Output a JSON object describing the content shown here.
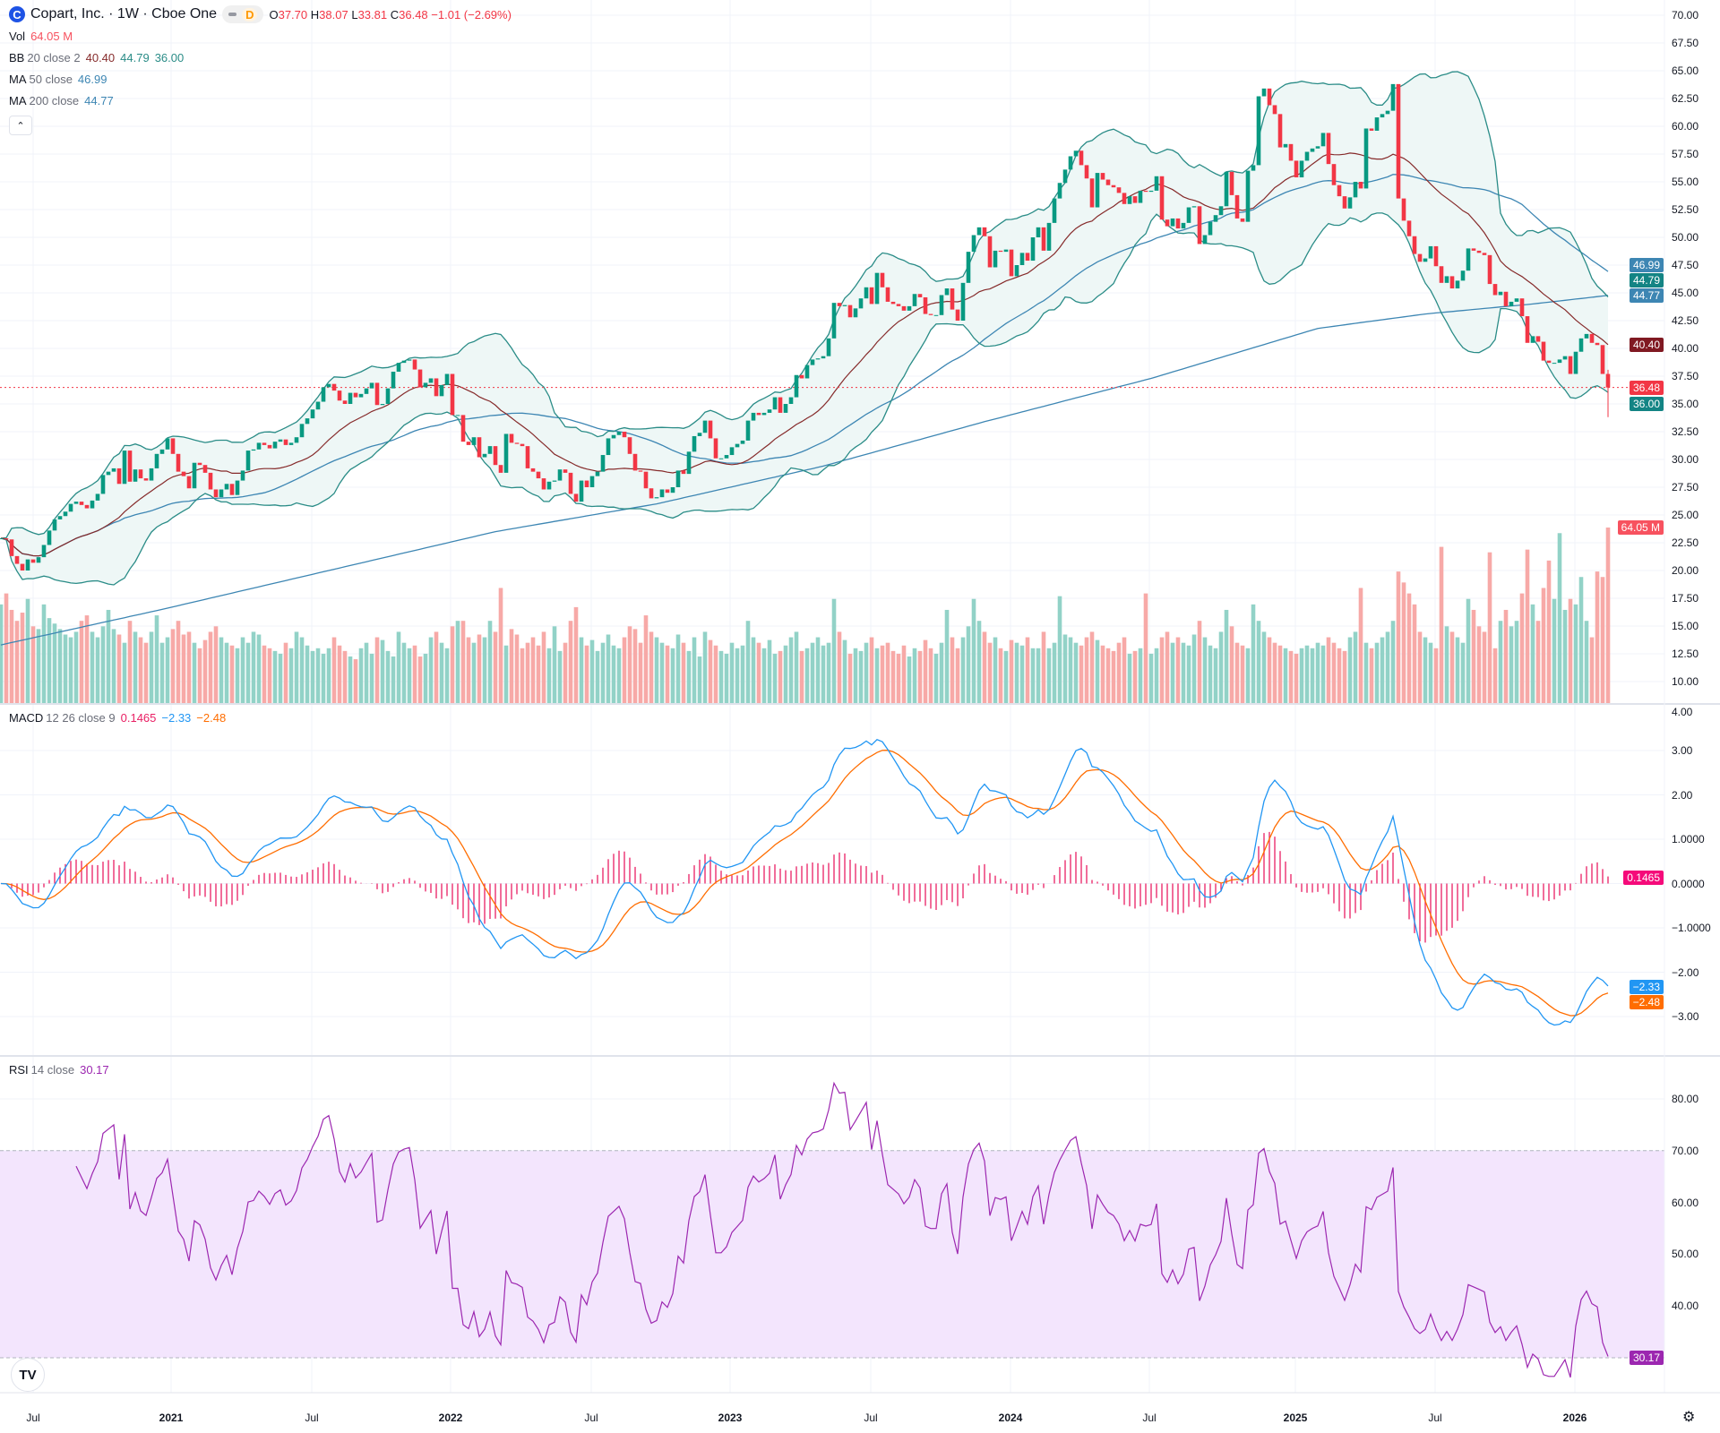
{
  "header": {
    "logo_letter": "C",
    "title": "Copart, Inc. · 1W · Cboe One",
    "badge": "D",
    "o_label": "O",
    "o_value": "37.70",
    "h_label": "H",
    "h_value": "38.07",
    "l_label": "L",
    "l_value": "33.81",
    "c_label": "C",
    "c_value": "36.48",
    "change": "−1.01 (−2.69%)"
  },
  "legend": {
    "vol": {
      "name": "Vol",
      "value": "64.05 M"
    },
    "bb": {
      "name": "BB",
      "params": "20 close 2",
      "basis": "40.40",
      "upper": "44.79",
      "lower": "36.00"
    },
    "ma50": {
      "name": "MA",
      "params": "50 close",
      "value": "46.99"
    },
    "ma200": {
      "name": "MA",
      "params": "200 close",
      "value": "44.77"
    },
    "collapse_icon": "chevron-up",
    "macd": {
      "name": "MACD",
      "params": "12 26 close 9",
      "hist": "0.1465",
      "macd": "−2.33",
      "signal": "−2.48"
    },
    "rsi": {
      "name": "RSI",
      "params": "14 close",
      "value": "30.17"
    }
  },
  "price_axis": [
    "70.00",
    "67.50",
    "65.00",
    "62.50",
    "60.00",
    "57.50",
    "55.00",
    "52.50",
    "50.00",
    "47.50",
    "45.00",
    "42.50",
    "40.00",
    "37.50",
    "35.00",
    "32.50",
    "30.00",
    "27.50",
    "25.00",
    "22.50",
    "20.00",
    "17.50",
    "15.00",
    "12.50",
    "10.00"
  ],
  "price_tags": {
    "ma50": "46.99",
    "bb_upper": "44.79",
    "ma200": "44.77",
    "bb_basis": "40.40",
    "last": "36.48",
    "bb_lower": "36.00",
    "volume": "64.05 M"
  },
  "macd_axis": [
    "4.00",
    "3.00",
    "2.00",
    "1.0000",
    "0.0000",
    "−1.0000",
    "−2.00",
    "−3.00"
  ],
  "macd_tags": {
    "hist": "0.1465",
    "macd": "−2.33",
    "signal": "−2.48"
  },
  "rsi_axis": [
    "80.00",
    "70.00",
    "60.00",
    "50.00",
    "40.00"
  ],
  "rsi_tag": "30.17",
  "time_axis": [
    {
      "label": "Jul",
      "year": false
    },
    {
      "label": "2021",
      "year": true
    },
    {
      "label": "Jul",
      "year": false
    },
    {
      "label": "2022",
      "year": true
    },
    {
      "label": "Jul",
      "year": false
    },
    {
      "label": "2023",
      "year": true
    },
    {
      "label": "Jul",
      "year": false
    },
    {
      "label": "2024",
      "year": true
    },
    {
      "label": "Jul",
      "year": false
    },
    {
      "label": "2025",
      "year": true
    },
    {
      "label": "Jul",
      "year": false
    },
    {
      "label": "2026",
      "year": true
    }
  ],
  "footer": {
    "logo": "TV",
    "settings_icon": "gear"
  },
  "colors": {
    "up": "#089981",
    "down": "#f23645",
    "vol_up": "#92d2c7",
    "vol_down": "#f7a9a7",
    "bb_basis": "#862b2b",
    "bb_band": "#2a8c87",
    "bb_fill": "#eef7f6",
    "ma": "#3d86b3",
    "macd": "#2196f3",
    "signal": "#ff6d00",
    "hist": "#e91e63",
    "rsi": "#9c27b0",
    "rsi_band": "#f3e5fd",
    "grid": "#f0f3fa"
  },
  "chart_data": {
    "type": "candlestick",
    "interval": "1W",
    "price_range": [
      10,
      70
    ],
    "macd_range": [
      -3.5,
      4
    ],
    "rsi_range": [
      20,
      85
    ],
    "rsi_levels": [
      70,
      30
    ],
    "last_bar": {
      "open": 37.7,
      "high": 38.07,
      "low": 33.81,
      "close": 36.48,
      "volume_m": 64.05
    },
    "close": [
      22.9,
      22.8,
      21.3,
      20.6,
      20.0,
      21.0,
      20.7,
      21.2,
      22.3,
      23.6,
      24.6,
      24.9,
      25.3,
      26.0,
      26.2,
      25.9,
      25.6,
      26.3,
      26.9,
      28.6,
      28.9,
      29.2,
      27.8,
      30.8,
      28.0,
      29.1,
      28.3,
      28.1,
      29.2,
      30.5,
      30.9,
      31.9,
      30.5,
      28.9,
      28.5,
      27.4,
      29.7,
      29.5,
      28.8,
      27.3,
      26.6,
      27.3,
      27.8,
      26.8,
      28.1,
      29.0,
      30.8,
      30.9,
      31.5,
      31.3,
      31.0,
      31.6,
      31.8,
      31.3,
      31.5,
      32.0,
      33.2,
      33.7,
      34.5,
      35.2,
      36.5,
      36.8,
      36.2,
      35.3,
      35.0,
      36.0,
      35.6,
      35.9,
      36.4,
      36.9,
      34.9,
      35.0,
      36.4,
      37.9,
      38.7,
      38.9,
      39.0,
      38.1,
      36.5,
      36.9,
      37.3,
      35.7,
      36.7,
      37.7,
      34.0,
      34.0,
      31.6,
      31.3,
      32.0,
      30.2,
      30.5,
      31.2,
      29.5,
      28.8,
      32.3,
      31.5,
      31.4,
      31.2,
      29.2,
      28.9,
      28.3,
      27.3,
      28.0,
      28.1,
      29.1,
      28.8,
      26.9,
      26.2,
      28.1,
      27.5,
      28.5,
      28.9,
      30.4,
      31.9,
      32.2,
      32.5,
      32.0,
      30.5,
      29.0,
      28.9,
      27.4,
      26.5,
      26.6,
      27.3,
      27.0,
      27.5,
      29.0,
      28.7,
      30.7,
      32.1,
      32.4,
      33.5,
      31.9,
      30.1,
      30.1,
      30.4,
      31.1,
      31.4,
      31.7,
      33.5,
      34.2,
      34.0,
      34.2,
      34.5,
      35.6,
      34.2,
      35.0,
      35.6,
      37.6,
      37.3,
      38.5,
      39.0,
      39.1,
      39.3,
      40.9,
      44.1,
      43.8,
      43.9,
      42.8,
      43.6,
      44.5,
      45.5,
      44.0,
      46.8,
      45.5,
      44.2,
      44.0,
      43.8,
      43.4,
      43.8,
      44.9,
      44.6,
      43.1,
      43.0,
      43.0,
      44.8,
      45.4,
      43.5,
      42.5,
      45.9,
      48.7,
      50.2,
      50.9,
      50.1,
      47.3,
      48.8,
      48.7,
      48.9,
      46.5,
      47.5,
      48.6,
      47.9,
      50.0,
      50.9,
      48.8,
      51.3,
      53.5,
      54.9,
      56.1,
      57.3,
      57.8,
      56.5,
      55.3,
      52.7,
      55.8,
      55.2,
      54.7,
      54.5,
      54.0,
      53.0,
      53.7,
      53.1,
      54.2,
      54.1,
      54.2,
      55.5,
      51.6,
      51.0,
      51.7,
      50.8,
      51.3,
      52.7,
      52.8,
      49.4,
      50.2,
      51.4,
      52.0,
      52.8,
      55.9,
      53.8,
      51.7,
      51.4,
      56.0,
      56.5,
      62.7,
      63.4,
      61.9,
      61.1,
      58.1,
      58.4,
      56.9,
      55.4,
      56.9,
      57.7,
      58.0,
      58.2,
      59.4,
      56.6,
      54.7,
      53.7,
      52.6,
      53.6,
      55.0,
      54.4,
      59.8,
      59.6,
      60.8,
      61.1,
      61.4,
      63.8,
      53.5,
      51.5,
      50.1,
      48.5,
      47.8,
      48.1,
      49.2,
      47.4,
      45.9,
      46.5,
      45.4,
      46.1,
      47.0,
      49.0,
      48.8,
      48.6,
      48.4,
      45.8,
      44.8,
      45.1,
      43.8,
      44.2,
      44.5,
      42.9,
      40.5,
      41.1,
      40.6,
      38.9,
      38.7,
      38.7,
      39.0,
      39.3,
      37.7,
      39.7,
      40.9,
      41.3,
      40.5,
      40.3,
      37.7,
      36.48
    ],
    "volume_m": [
      36,
      40,
      34,
      30,
      33,
      38,
      28,
      27,
      36,
      31,
      29,
      27,
      25,
      24,
      26,
      30,
      32,
      26,
      24,
      28,
      34,
      27,
      25,
      22,
      30,
      26,
      24,
      22,
      26,
      32,
      22,
      24,
      27,
      30,
      25,
      26,
      22,
      20,
      23,
      26,
      28,
      24,
      22,
      21,
      20,
      24,
      22,
      26,
      25,
      21,
      20,
      19,
      18,
      22,
      20,
      26,
      24,
      21,
      19,
      20,
      18,
      20,
      24,
      21,
      19,
      17,
      16,
      20,
      22,
      18,
      24,
      23,
      19,
      17,
      26,
      22,
      20,
      21,
      17,
      18,
      24,
      26,
      22,
      20,
      28,
      30,
      30,
      24,
      22,
      25,
      24,
      30,
      26,
      42,
      21,
      27,
      25,
      20,
      22,
      24,
      21,
      26,
      20,
      28,
      19,
      22,
      30,
      35,
      24,
      21,
      23,
      19,
      22,
      25,
      21,
      20,
      24,
      28,
      27,
      22,
      32,
      26,
      24,
      22,
      21,
      20,
      25,
      22,
      19,
      24,
      17,
      26,
      23,
      21,
      19,
      18,
      22,
      20,
      21,
      30,
      24,
      22,
      20,
      23,
      18,
      19,
      21,
      24,
      26,
      19,
      20,
      22,
      24,
      21,
      22,
      38,
      26,
      23,
      18,
      20,
      19,
      22,
      24,
      20,
      21,
      22,
      19,
      18,
      21,
      17,
      20,
      19,
      23,
      20,
      18,
      22,
      34,
      24,
      20,
      24,
      28,
      38,
      30,
      26,
      22,
      24,
      20,
      19,
      23,
      22,
      21,
      24,
      20,
      20,
      26,
      20,
      22,
      39,
      25,
      24,
      22,
      21,
      24,
      26,
      23,
      21,
      20,
      19,
      22,
      24,
      18,
      19,
      20,
      40,
      18,
      20,
      24,
      26,
      22,
      24,
      22,
      21,
      25,
      30,
      24,
      21,
      20,
      26,
      34,
      28,
      22,
      21,
      20,
      36,
      30,
      26,
      24,
      22,
      21,
      20,
      19,
      18,
      20,
      21,
      20,
      22,
      21,
      24,
      22,
      20,
      19,
      24,
      26,
      42,
      22,
      20,
      22,
      24,
      26,
      30,
      48,
      44,
      40,
      36,
      26,
      24,
      22,
      20,
      57,
      28,
      26,
      24,
      22,
      38,
      34,
      28,
      26,
      55,
      20,
      30,
      34,
      28,
      30,
      40,
      56,
      36,
      30,
      42,
      52,
      38,
      62,
      34,
      38,
      36,
      46,
      30,
      24,
      48,
      46,
      64.05
    ],
    "ma200_points": [
      {
        "at_bar": 0,
        "value": 13.3
      },
      {
        "at_bar": 30,
        "value": 16.5
      },
      {
        "at_bar": 61,
        "value": 20.0
      },
      {
        "at_bar": 92,
        "value": 23.5
      },
      {
        "at_bar": 122,
        "value": 26.0
      },
      {
        "at_bar": 153,
        "value": 29.4
      },
      {
        "at_bar": 183,
        "value": 33.4
      },
      {
        "at_bar": 214,
        "value": 37.3
      },
      {
        "at_bar": 245,
        "value": 41.8
      },
      {
        "at_bar": 265,
        "value": 43.1
      },
      {
        "at_bar": 285,
        "value": 44.0
      },
      {
        "at_bar": 299,
        "value": 44.77
      }
    ]
  }
}
